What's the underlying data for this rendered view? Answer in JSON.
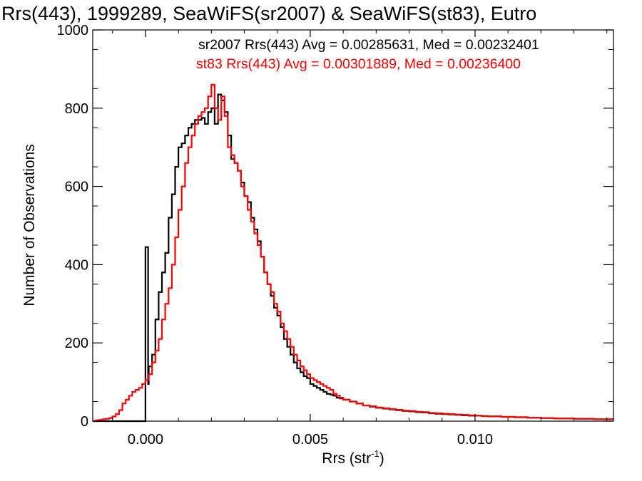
{
  "chart_data": {
    "type": "histogram",
    "title": "Rrs(443), 1999289, SeaWiFS(sr2007) & SeaWiFS(st83), Eutro",
    "xlabel_main": "Rrs (str",
    "xlabel_sup": "-1",
    "xlabel_close": ")",
    "ylabel": "Number of Observations",
    "xlim": [
      -0.0016,
      0.0142
    ],
    "ylim": [
      0,
      1000
    ],
    "xticks": [
      {
        "value": 0.0,
        "label": "0.000"
      },
      {
        "value": 0.005,
        "label": "0.005"
      },
      {
        "value": 0.01,
        "label": "0.010"
      }
    ],
    "yticks": [
      {
        "value": 0,
        "label": "0"
      },
      {
        "value": 200,
        "label": "200"
      },
      {
        "value": 400,
        "label": "400"
      },
      {
        "value": 600,
        "label": "600"
      },
      {
        "value": 800,
        "label": "800"
      },
      {
        "value": 1000,
        "label": "1000"
      }
    ],
    "annotations": [
      {
        "text": "sr2007 Rrs(443) Avg = 0.00285631, Med = 0.00232401",
        "color": "#000000"
      },
      {
        "text": "st83 Rrs(443) Avg = 0.00301889, Med = 0.00236400",
        "color": "#ff0000"
      }
    ],
    "series": [
      {
        "name": "sr2007",
        "color": "#000000",
        "points": [
          [
            -0.0016,
            0
          ],
          [
            -0.0002,
            0
          ],
          [
            -2e-05,
            0
          ],
          [
            0.0,
            445
          ],
          [
            6e-05,
            445
          ],
          [
            8e-05,
            95
          ],
          [
            0.0001,
            140
          ],
          [
            0.0002,
            170
          ],
          [
            0.0003,
            260
          ],
          [
            0.0004,
            330
          ],
          [
            0.0005,
            380
          ],
          [
            0.0006,
            430
          ],
          [
            0.0007,
            520
          ],
          [
            0.0008,
            580
          ],
          [
            0.0009,
            650
          ],
          [
            0.001,
            700
          ],
          [
            0.0011,
            710
          ],
          [
            0.0012,
            730
          ],
          [
            0.0013,
            750
          ],
          [
            0.0014,
            760
          ],
          [
            0.0015,
            770
          ],
          [
            0.0016,
            770
          ],
          [
            0.0017,
            775
          ],
          [
            0.0018,
            760
          ],
          [
            0.0019,
            790
          ],
          [
            0.002,
            800
          ],
          [
            0.0021,
            760
          ],
          [
            0.0022,
            835
          ],
          [
            0.0023,
            820
          ],
          [
            0.0024,
            790
          ],
          [
            0.0025,
            730
          ],
          [
            0.0026,
            670
          ],
          [
            0.0027,
            660
          ],
          [
            0.0028,
            640
          ],
          [
            0.0029,
            610
          ],
          [
            0.003,
            575
          ],
          [
            0.0031,
            560
          ],
          [
            0.0032,
            520
          ],
          [
            0.0033,
            490
          ],
          [
            0.0034,
            460
          ],
          [
            0.0035,
            420
          ],
          [
            0.0036,
            380
          ],
          [
            0.0037,
            350
          ],
          [
            0.0038,
            320
          ],
          [
            0.0039,
            290
          ],
          [
            0.004,
            270
          ],
          [
            0.0041,
            240
          ],
          [
            0.0042,
            210
          ],
          [
            0.0043,
            190
          ],
          [
            0.0044,
            170
          ],
          [
            0.0045,
            150
          ],
          [
            0.0046,
            135
          ],
          [
            0.0047,
            125
          ],
          [
            0.0048,
            115
          ],
          [
            0.0049,
            110
          ],
          [
            0.005,
            95
          ],
          [
            0.0051,
            90
          ],
          [
            0.0052,
            85
          ],
          [
            0.0053,
            80
          ],
          [
            0.0054,
            75
          ],
          [
            0.0055,
            70
          ],
          [
            0.0056,
            68
          ],
          [
            0.0057,
            65
          ],
          [
            0.0058,
            60
          ],
          [
            0.0059,
            58
          ],
          [
            0.006,
            55
          ],
          [
            0.0062,
            50
          ],
          [
            0.0064,
            45
          ],
          [
            0.0066,
            40
          ],
          [
            0.0068,
            37
          ],
          [
            0.007,
            34
          ],
          [
            0.0072,
            32
          ],
          [
            0.0074,
            30
          ],
          [
            0.0076,
            28
          ],
          [
            0.0078,
            26
          ],
          [
            0.008,
            25
          ],
          [
            0.0082,
            23
          ],
          [
            0.0084,
            22
          ],
          [
            0.0086,
            20
          ],
          [
            0.0088,
            19
          ],
          [
            0.009,
            18
          ],
          [
            0.0092,
            17
          ],
          [
            0.0094,
            16
          ],
          [
            0.0096,
            15
          ],
          [
            0.0098,
            14
          ],
          [
            0.01,
            14
          ],
          [
            0.0102,
            13
          ],
          [
            0.0104,
            12
          ],
          [
            0.0106,
            12
          ],
          [
            0.0108,
            11
          ],
          [
            0.011,
            11
          ],
          [
            0.0112,
            10
          ],
          [
            0.0114,
            10
          ],
          [
            0.0116,
            9
          ],
          [
            0.0118,
            9
          ],
          [
            0.012,
            8
          ],
          [
            0.0122,
            8
          ],
          [
            0.0124,
            7
          ],
          [
            0.0126,
            7
          ],
          [
            0.0128,
            7
          ],
          [
            0.013,
            6
          ],
          [
            0.0132,
            6
          ],
          [
            0.0134,
            6
          ],
          [
            0.0136,
            5
          ],
          [
            0.0138,
            5
          ],
          [
            0.014,
            5
          ],
          [
            0.0142,
            5
          ]
        ]
      },
      {
        "name": "st83",
        "color": "#ff0000",
        "points": [
          [
            -0.0016,
            0
          ],
          [
            -0.0015,
            2
          ],
          [
            -0.0014,
            3
          ],
          [
            -0.0013,
            5
          ],
          [
            -0.0012,
            6
          ],
          [
            -0.0011,
            8
          ],
          [
            -0.001,
            12
          ],
          [
            -0.0009,
            18
          ],
          [
            -0.0008,
            28
          ],
          [
            -0.0007,
            45
          ],
          [
            -0.0006,
            55
          ],
          [
            -0.0005,
            65
          ],
          [
            -0.0004,
            75
          ],
          [
            -0.0003,
            80
          ],
          [
            -0.0002,
            85
          ],
          [
            -0.0001,
            95
          ],
          [
            0.0,
            105
          ],
          [
            0.0001,
            120
          ],
          [
            0.0002,
            150
          ],
          [
            0.0003,
            180
          ],
          [
            0.0004,
            210
          ],
          [
            0.0005,
            260
          ],
          [
            0.0006,
            300
          ],
          [
            0.0007,
            340
          ],
          [
            0.0008,
            400
          ],
          [
            0.0009,
            470
          ],
          [
            0.001,
            540
          ],
          [
            0.0011,
            600
          ],
          [
            0.0012,
            660
          ],
          [
            0.0013,
            700
          ],
          [
            0.0014,
            730
          ],
          [
            0.0015,
            760
          ],
          [
            0.0016,
            780
          ],
          [
            0.0017,
            790
          ],
          [
            0.0018,
            800
          ],
          [
            0.0019,
            830
          ],
          [
            0.002,
            860
          ],
          [
            0.0021,
            800
          ],
          [
            0.0022,
            770
          ],
          [
            0.0023,
            830
          ],
          [
            0.0024,
            780
          ],
          [
            0.0025,
            700
          ],
          [
            0.0026,
            680
          ],
          [
            0.0027,
            660
          ],
          [
            0.0028,
            640
          ],
          [
            0.0029,
            600
          ],
          [
            0.003,
            575
          ],
          [
            0.0031,
            540
          ],
          [
            0.0032,
            510
          ],
          [
            0.0033,
            480
          ],
          [
            0.0034,
            450
          ],
          [
            0.0035,
            420
          ],
          [
            0.0036,
            380
          ],
          [
            0.0037,
            350
          ],
          [
            0.0038,
            330
          ],
          [
            0.0039,
            300
          ],
          [
            0.004,
            280
          ],
          [
            0.0041,
            250
          ],
          [
            0.0042,
            230
          ],
          [
            0.0043,
            210
          ],
          [
            0.0044,
            190
          ],
          [
            0.0045,
            170
          ],
          [
            0.0046,
            155
          ],
          [
            0.0047,
            140
          ],
          [
            0.0048,
            130
          ],
          [
            0.0049,
            120
          ],
          [
            0.005,
            110
          ],
          [
            0.0051,
            105
          ],
          [
            0.0052,
            100
          ],
          [
            0.0053,
            95
          ],
          [
            0.0054,
            90
          ],
          [
            0.0055,
            85
          ],
          [
            0.0056,
            80
          ],
          [
            0.0057,
            70
          ],
          [
            0.0058,
            65
          ],
          [
            0.0059,
            60
          ],
          [
            0.006,
            55
          ],
          [
            0.0062,
            50
          ],
          [
            0.0064,
            45
          ],
          [
            0.0066,
            40
          ],
          [
            0.0068,
            38
          ],
          [
            0.007,
            35
          ],
          [
            0.0072,
            33
          ],
          [
            0.0074,
            31
          ],
          [
            0.0076,
            29
          ],
          [
            0.0078,
            27
          ],
          [
            0.008,
            26
          ],
          [
            0.0082,
            24
          ],
          [
            0.0084,
            23
          ],
          [
            0.0086,
            21
          ],
          [
            0.0088,
            20
          ],
          [
            0.009,
            19
          ],
          [
            0.0092,
            18
          ],
          [
            0.0094,
            17
          ],
          [
            0.0096,
            16
          ],
          [
            0.0098,
            15
          ],
          [
            0.01,
            14
          ],
          [
            0.0102,
            13
          ],
          [
            0.0104,
            12
          ],
          [
            0.0106,
            12
          ],
          [
            0.0108,
            11
          ],
          [
            0.011,
            11
          ],
          [
            0.0112,
            10
          ],
          [
            0.0114,
            10
          ],
          [
            0.0116,
            9
          ],
          [
            0.0118,
            9
          ],
          [
            0.012,
            8
          ],
          [
            0.0122,
            8
          ],
          [
            0.0124,
            7
          ],
          [
            0.0126,
            7
          ],
          [
            0.0128,
            7
          ],
          [
            0.013,
            6
          ],
          [
            0.0132,
            6
          ],
          [
            0.0134,
            6
          ],
          [
            0.0136,
            5
          ],
          [
            0.0138,
            5
          ],
          [
            0.014,
            5
          ],
          [
            0.0142,
            5
          ]
        ]
      }
    ]
  }
}
